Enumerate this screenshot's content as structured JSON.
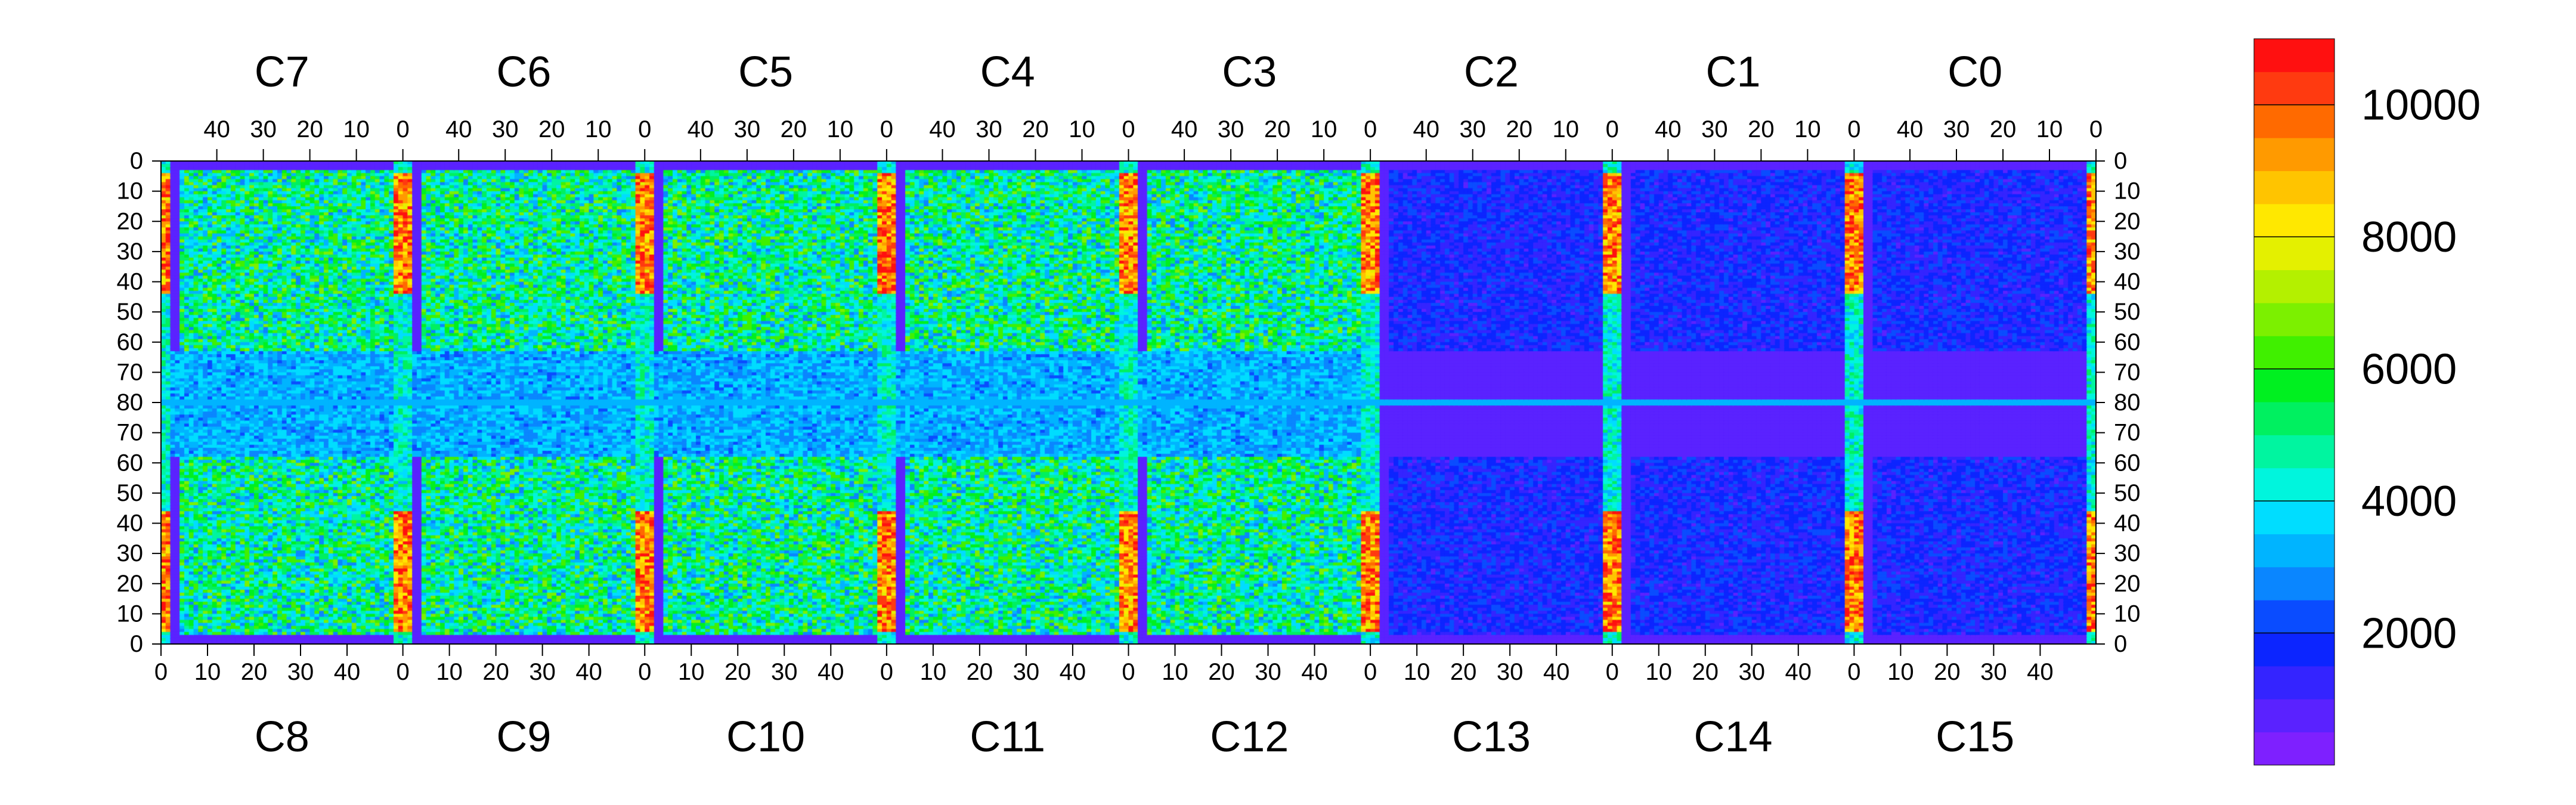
{
  "chart_data": {
    "type": "heatmap",
    "title": "",
    "xlabel": "",
    "ylabel": "",
    "grid": false,
    "top_chip_labels": [
      "C7",
      "C6",
      "C5",
      "C4",
      "C3",
      "C2",
      "C1",
      "C0"
    ],
    "bottom_chip_labels": [
      "C8",
      "C9",
      "C10",
      "C11",
      "C12",
      "C13",
      "C14",
      "C15"
    ],
    "chip_columns": 52,
    "rows_per_half": 80,
    "top_x_ticks": [
      40,
      30,
      20,
      10,
      0
    ],
    "bottom_x_ticks": [
      0,
      10,
      20,
      30,
      40
    ],
    "y_ticks_upper": [
      0,
      10,
      20,
      30,
      40,
      50,
      60,
      70,
      80
    ],
    "y_ticks_lower": [
      70,
      60,
      50,
      40,
      30,
      20,
      10,
      0
    ],
    "colorbar": {
      "min": 0,
      "max": 11000,
      "ticks": [
        2000,
        4000,
        6000,
        8000,
        10000
      ],
      "tick_labels": [
        "2000",
        "4000",
        "6000",
        "8000",
        "10000"
      ],
      "colors": [
        "#7e20ff",
        "#5a22ff",
        "#3424ff",
        "#0c25ff",
        "#0a4cff",
        "#0a86ff",
        "#00b4ff",
        "#00ddff",
        "#00f5dd",
        "#00f5a0",
        "#00f060",
        "#00f020",
        "#40f000",
        "#7cf000",
        "#b4f000",
        "#e4f000",
        "#ffe800",
        "#ffc400",
        "#ff9a00",
        "#ff6a00",
        "#ff3a10",
        "#ff1010"
      ]
    },
    "approx_cell_levels": {
      "background": 600,
      "inter_chip_column_bands": 10500,
      "chip_row_80_band": 3000,
      "body_typical": 4500
    }
  }
}
